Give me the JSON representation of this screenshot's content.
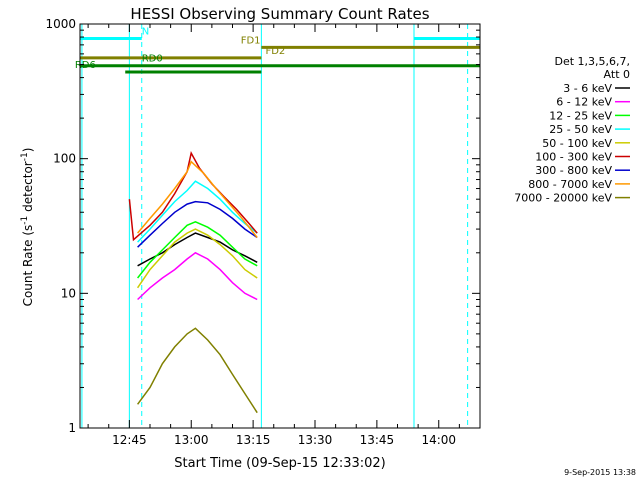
{
  "chart_data": {
    "type": "line",
    "title": "HESSI Observing Summary Count Rates",
    "xlabel": "Start Time (09-Sep-15 12:33:02)",
    "ylabel": "Count Rate (s",
    "ylabel_sup": "-1",
    "ylabel_mid": " detector",
    "ylabel_sup2": "-1",
    "ylabel_end": ")",
    "y_scale": "log",
    "ylim": [
      1,
      1000
    ],
    "xlim": [
      "12:33:02",
      "14:10:00"
    ],
    "x_ticks": [
      "12:45",
      "13:00",
      "13:15",
      "13:30",
      "13:45",
      "14:00"
    ],
    "y_ticks": [
      "1",
      "10",
      "100",
      "1000"
    ],
    "legend_title_1": "Det 1,3,5,6,7,",
    "legend_title_2": "Att 0",
    "legend_position": "right",
    "timestamp": "9-Sep-2015 13:38",
    "series": [
      {
        "name": "3 - 6 keV",
        "color": "#000000",
        "values": [
          [
            "12:47",
            16
          ],
          [
            "12:50",
            18
          ],
          [
            "12:53",
            20
          ],
          [
            "12:56",
            23
          ],
          [
            "12:59",
            26
          ],
          [
            "13:01",
            28
          ],
          [
            "13:04",
            26
          ],
          [
            "13:07",
            24
          ],
          [
            "13:10",
            21
          ],
          [
            "13:13",
            19
          ],
          [
            "13:16",
            17
          ]
        ]
      },
      {
        "name": "6 - 12 keV",
        "color": "#ff00ff",
        "values": [
          [
            "12:47",
            9
          ],
          [
            "12:50",
            11
          ],
          [
            "12:53",
            13
          ],
          [
            "12:56",
            15
          ],
          [
            "12:59",
            18
          ],
          [
            "13:01",
            20
          ],
          [
            "13:04",
            18
          ],
          [
            "13:07",
            15
          ],
          [
            "13:10",
            12
          ],
          [
            "13:13",
            10
          ],
          [
            "13:16",
            9
          ]
        ]
      },
      {
        "name": "12 - 25 keV",
        "color": "#00ff00",
        "values": [
          [
            "12:47",
            13
          ],
          [
            "12:50",
            17
          ],
          [
            "12:53",
            21
          ],
          [
            "12:56",
            26
          ],
          [
            "12:59",
            32
          ],
          [
            "13:01",
            34
          ],
          [
            "13:04",
            31
          ],
          [
            "13:07",
            27
          ],
          [
            "13:10",
            22
          ],
          [
            "13:13",
            18
          ],
          [
            "13:16",
            16
          ]
        ]
      },
      {
        "name": "25 - 50 keV",
        "color": "#00ffff",
        "values": [
          [
            "12:47",
            24
          ],
          [
            "12:50",
            30
          ],
          [
            "12:53",
            38
          ],
          [
            "12:56",
            48
          ],
          [
            "12:59",
            58
          ],
          [
            "13:01",
            68
          ],
          [
            "13:04",
            60
          ],
          [
            "13:07",
            50
          ],
          [
            "13:10",
            40
          ],
          [
            "13:13",
            33
          ],
          [
            "13:16",
            28
          ]
        ]
      },
      {
        "name": "50 - 100 keV",
        "color": "#cccc00",
        "values": [
          [
            "12:47",
            11
          ],
          [
            "12:50",
            15
          ],
          [
            "12:53",
            19
          ],
          [
            "12:56",
            24
          ],
          [
            "12:59",
            28
          ],
          [
            "13:01",
            30
          ],
          [
            "13:04",
            27
          ],
          [
            "13:07",
            23
          ],
          [
            "13:10",
            19
          ],
          [
            "13:13",
            15
          ],
          [
            "13:16",
            13
          ]
        ]
      },
      {
        "name": "100 - 300 keV",
        "color": "#cc0000",
        "values": [
          [
            "12:45",
            50
          ],
          [
            "12:46",
            25
          ],
          [
            "12:50",
            32
          ],
          [
            "12:53",
            40
          ],
          [
            "12:56",
            55
          ],
          [
            "12:59",
            80
          ],
          [
            "13:00",
            110
          ],
          [
            "13:02",
            85
          ],
          [
            "13:05",
            65
          ],
          [
            "13:08",
            52
          ],
          [
            "13:11",
            42
          ],
          [
            "13:14",
            33
          ],
          [
            "13:16",
            28
          ]
        ]
      },
      {
        "name": "300 - 800 keV",
        "color": "#0000cc",
        "values": [
          [
            "12:47",
            22
          ],
          [
            "12:50",
            27
          ],
          [
            "12:53",
            33
          ],
          [
            "12:56",
            40
          ],
          [
            "12:59",
            46
          ],
          [
            "13:01",
            48
          ],
          [
            "13:04",
            47
          ],
          [
            "13:07",
            42
          ],
          [
            "13:10",
            36
          ],
          [
            "13:13",
            30
          ],
          [
            "13:16",
            26
          ]
        ]
      },
      {
        "name": "800 - 7000 keV",
        "color": "#ff9900",
        "values": [
          [
            "12:47",
            28
          ],
          [
            "12:50",
            36
          ],
          [
            "12:53",
            46
          ],
          [
            "12:56",
            60
          ],
          [
            "12:59",
            80
          ],
          [
            "13:00",
            95
          ],
          [
            "13:03",
            78
          ],
          [
            "13:06",
            60
          ],
          [
            "13:09",
            47
          ],
          [
            "13:12",
            37
          ],
          [
            "13:16",
            26
          ]
        ]
      },
      {
        "name": "7000 - 20000 keV",
        "color": "#808000",
        "values": [
          [
            "12:47",
            1.5
          ],
          [
            "12:50",
            2
          ],
          [
            "12:53",
            3
          ],
          [
            "12:56",
            4
          ],
          [
            "12:59",
            5
          ],
          [
            "13:01",
            5.5
          ],
          [
            "13:04",
            4.5
          ],
          [
            "13:07",
            3.5
          ],
          [
            "13:10",
            2.5
          ],
          [
            "13:13",
            1.8
          ],
          [
            "13:16",
            1.3
          ]
        ]
      }
    ],
    "mode_bars": [
      {
        "label": "N",
        "color": "#00ffff",
        "y": 780,
        "start": "12:33:02",
        "end": "12:48",
        "label_at": "12:48"
      },
      {
        "label": "",
        "color": "#00ffff",
        "y": 780,
        "start": "13:54",
        "end": "14:10",
        "label_at": ""
      },
      {
        "label": "FD1",
        "color": "#808000",
        "y": 670,
        "start": "13:17",
        "end": "14:10",
        "label_at": "13:12"
      },
      {
        "label": "FD2",
        "color": "#808000",
        "y": 560,
        "start": "12:33:02",
        "end": "13:17",
        "label_at": "13:18"
      },
      {
        "label": "RD0",
        "color": "#008000",
        "y": 490,
        "start": "12:33:02",
        "end": "14:10",
        "label_at": "12:48"
      },
      {
        "label": "RD6",
        "color": "#008000",
        "y": 440,
        "start": "12:44",
        "end": "13:17",
        "label_at": "12:41"
      }
    ],
    "vertical_lines": [
      {
        "t": "12:33:30",
        "color": "#00ffff",
        "style": "solid"
      },
      {
        "t": "12:45",
        "color": "#00ffff",
        "style": "solid"
      },
      {
        "t": "12:48",
        "color": "#00ffff",
        "style": "dashed"
      },
      {
        "t": "13:17",
        "color": "#00ffff",
        "style": "solid"
      },
      {
        "t": "13:54",
        "color": "#00ffff",
        "style": "solid"
      },
      {
        "t": "14:07",
        "color": "#00ffff",
        "style": "dashed"
      }
    ]
  }
}
